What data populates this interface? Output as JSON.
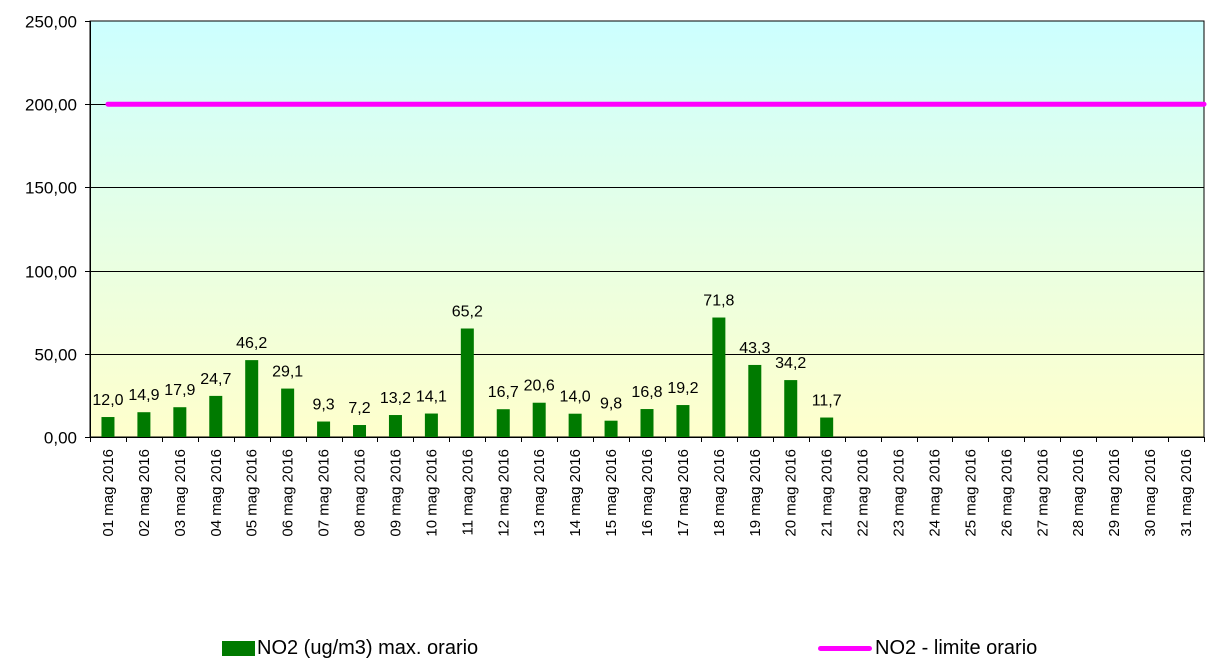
{
  "chart_data": {
    "type": "bar",
    "categories": [
      "01 mag 2016",
      "02 mag 2016",
      "03 mag 2016",
      "04 mag 2016",
      "05 mag 2016",
      "06 mag 2016",
      "07 mag 2016",
      "08 mag 2016",
      "09 mag 2016",
      "10 mag 2016",
      "11 mag 2016",
      "12 mag 2016",
      "13 mag 2016",
      "14 mag 2016",
      "15 mag 2016",
      "16 mag 2016",
      "17 mag 2016",
      "18 mag 2016",
      "19 mag 2016",
      "20 mag 2016",
      "21 mag 2016",
      "22 mag 2016",
      "23 mag 2016",
      "24 mag 2016",
      "25 mag 2016",
      "26 mag 2016",
      "27 mag 2016",
      "28 mag 2016",
      "29 mag 2016",
      "30 mag 2016",
      "31 mag 2016"
    ],
    "series": [
      {
        "name": "NO2 (ug/m3) max. orario",
        "type": "bar",
        "color": "#007a00",
        "values": [
          12.0,
          14.9,
          17.9,
          24.7,
          46.2,
          29.1,
          9.3,
          7.2,
          13.2,
          14.1,
          65.2,
          16.7,
          20.6,
          14.0,
          9.8,
          16.8,
          19.2,
          71.8,
          43.3,
          34.2,
          11.7,
          null,
          null,
          null,
          null,
          null,
          null,
          null,
          null,
          null,
          null
        ],
        "labels": [
          "12,0",
          "14,9",
          "17,9",
          "24,7",
          "46,2",
          "29,1",
          "9,3",
          "7,2",
          "13,2",
          "14,1",
          "65,2",
          "16,7",
          "20,6",
          "14,0",
          "9,8",
          "16,8",
          "19,2",
          "71,8",
          "43,3",
          "34,2",
          "11,7",
          "",
          "",
          "",
          "",
          "",
          "",
          "",
          "",
          "",
          ""
        ]
      },
      {
        "name": "NO2 - limite orario",
        "type": "line",
        "color": "#ff00ff",
        "value": 200
      }
    ],
    "ylim": [
      0,
      250
    ],
    "yticks": [
      "0,00",
      "50,00",
      "100,00",
      "150,00",
      "200,00",
      "250,00"
    ],
    "ytick_values": [
      0,
      50,
      100,
      150,
      200,
      250
    ],
    "xlabel": "",
    "ylabel": "",
    "title": "",
    "grid": true,
    "legend_position": "bottom",
    "background_gradient": [
      "#ccffff",
      "#ffffcc"
    ]
  },
  "legend": {
    "bar_label": "NO2 (ug/m3) max. orario",
    "line_label": "NO2 - limite orario"
  }
}
